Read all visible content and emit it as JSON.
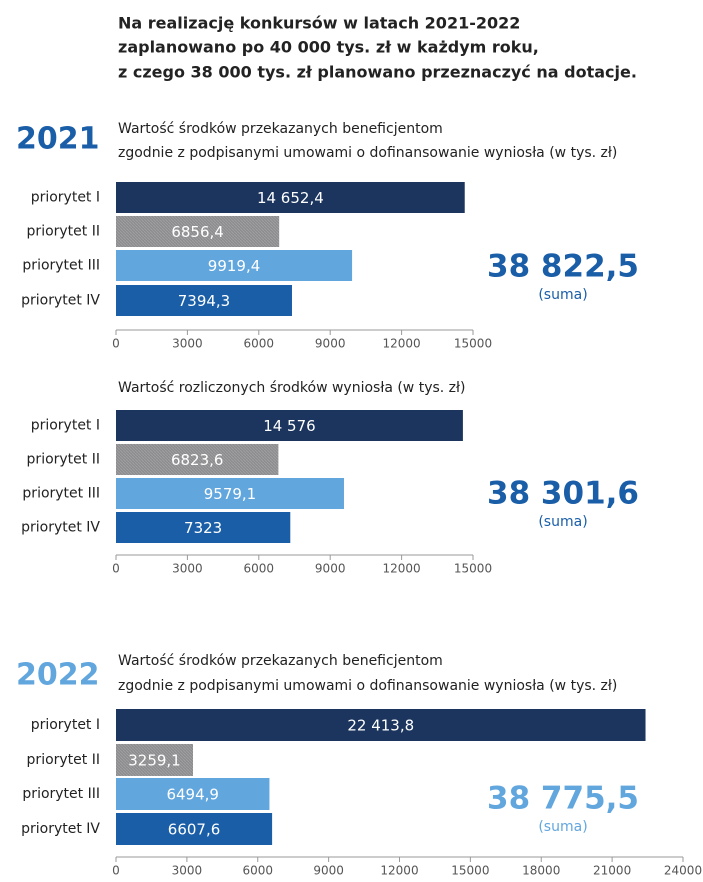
{
  "header": {
    "lines": [
      "Na realizację konkursów w latach 2021-2022",
      "zaplanowano po 40 000 tys. zł w każdym roku,",
      "z czego 38 000 tys. zł planowano przeznaczyć na dotacje."
    ]
  },
  "chart_data": [
    {
      "type": "bar",
      "orientation": "horizontal",
      "year": "2021",
      "title": [
        "Wartość środków przekazanych beneficjentom",
        "zgodnie z podpisanymi umowami  o dofinansowanie wyniosła  (w tys. zł)"
      ],
      "categories": [
        "priorytet I",
        "priorytet II",
        "priorytet III",
        "priorytet IV"
      ],
      "values": [
        14652.4,
        6856.4,
        9919.4,
        7394.3
      ],
      "value_labels": [
        "14 652,4",
        "6856,4",
        "9919,4",
        "7394,3"
      ],
      "colors": [
        "#1b355e",
        "#8c8c8e",
        "#62a6de",
        "#1a5ea8"
      ],
      "xlim": [
        0,
        15000
      ],
      "xticks": [
        0,
        3000,
        6000,
        9000,
        12000,
        15000
      ],
      "total_label": "38 822,5",
      "total_note": "(suma)",
      "total_color": "#1a5ea8"
    },
    {
      "type": "bar",
      "orientation": "horizontal",
      "title": [
        "Wartość rozliczonych środków wyniosła  (w tys. zł)"
      ],
      "categories": [
        "priorytet I",
        "priorytet II",
        "priorytet III",
        "priorytet IV"
      ],
      "values": [
        14576,
        6823.6,
        9579.1,
        7323
      ],
      "value_labels": [
        "14 576",
        "6823,6",
        "9579,1",
        "7323"
      ],
      "colors": [
        "#1b355e",
        "#8c8c8e",
        "#62a6de",
        "#1a5ea8"
      ],
      "xlim": [
        0,
        15000
      ],
      "xticks": [
        0,
        3000,
        6000,
        9000,
        12000,
        15000
      ],
      "total_label": "38 301,6",
      "total_note": "(suma)",
      "total_color": "#1a5ea8"
    },
    {
      "type": "bar",
      "orientation": "horizontal",
      "year": "2022",
      "title": [
        "Wartość środków przekazanych beneficjentom",
        "zgodnie z podpisanymi umowami o dofinansowanie wyniosła (w tys. zł)"
      ],
      "categories": [
        "priorytet I",
        "priorytet II",
        "priorytet III",
        "priorytet IV"
      ],
      "values": [
        22413.8,
        3259.1,
        6494.9,
        6607.6
      ],
      "value_labels": [
        "22 413,8",
        "3259,1",
        "6494,9",
        "6607,6"
      ],
      "colors": [
        "#1b355e",
        "#8c8c8e",
        "#62a6de",
        "#1a5ea8"
      ],
      "xlim": [
        0,
        24000
      ],
      "xticks": [
        0,
        3000,
        6000,
        9000,
        12000,
        15000,
        18000,
        21000,
        24000
      ],
      "total_label": "38 775,5",
      "total_note": "(suma)",
      "total_color": "#62a6de"
    }
  ]
}
